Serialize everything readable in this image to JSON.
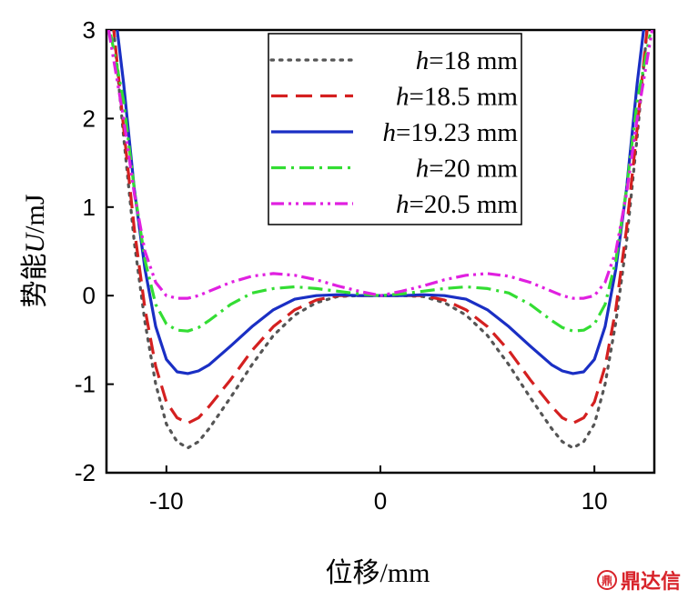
{
  "chart_data": {
    "type": "line",
    "title": "",
    "xlabel": "位移/mm",
    "ylabel_prefix": "势能",
    "ylabel_var": "U",
    "ylabel_unit": "/mJ",
    "xlim": [
      -12.8,
      12.8
    ],
    "ylim": [
      -2,
      3
    ],
    "xticks": [
      -10,
      0,
      10
    ],
    "yticks": [
      -2,
      -1,
      0,
      1,
      2,
      3
    ],
    "grid": false,
    "legend_position": "top-center",
    "series": [
      {
        "name_var": "h",
        "name_rest": "=18 mm",
        "color": "#555555",
        "dash": "dotted",
        "x": [
          -12.5,
          -12,
          -11.5,
          -11,
          -10.5,
          -10,
          -9.5,
          -9,
          -8.5,
          -8,
          -7,
          -6,
          -5,
          -4,
          -3,
          -2,
          -1,
          0,
          1,
          2,
          3,
          4,
          5,
          6,
          7,
          8,
          8.5,
          9,
          9.5,
          10,
          10.5,
          11,
          11.5,
          12,
          12.5
        ],
        "y": [
          3.1,
          1.8,
          0.6,
          -0.3,
          -1.0,
          -1.45,
          -1.65,
          -1.72,
          -1.65,
          -1.5,
          -1.15,
          -0.78,
          -0.45,
          -0.22,
          -0.08,
          -0.01,
          0,
          0,
          0,
          -0.01,
          -0.08,
          -0.22,
          -0.45,
          -0.78,
          -1.15,
          -1.5,
          -1.65,
          -1.72,
          -1.65,
          -1.45,
          -1.0,
          -0.3,
          0.6,
          1.8,
          3.1
        ]
      },
      {
        "name_var": "h",
        "name_rest": "=18.5 mm",
        "color": "#d42020",
        "dash": "dashed",
        "x": [
          -12.5,
          -12,
          -11.5,
          -11,
          -10.5,
          -10,
          -9.5,
          -9,
          -8.5,
          -8,
          -7,
          -6,
          -5,
          -4,
          -3,
          -2,
          -1,
          0,
          1,
          2,
          3,
          4,
          5,
          6,
          7,
          8,
          8.5,
          9,
          9.5,
          10,
          10.5,
          11,
          11.5,
          12,
          12.5
        ],
        "y": [
          3.1,
          1.9,
          0.75,
          -0.15,
          -0.8,
          -1.2,
          -1.38,
          -1.44,
          -1.38,
          -1.25,
          -0.95,
          -0.62,
          -0.35,
          -0.16,
          -0.05,
          0,
          0,
          0,
          0,
          0,
          -0.05,
          -0.16,
          -0.35,
          -0.62,
          -0.95,
          -1.25,
          -1.38,
          -1.44,
          -1.38,
          -1.2,
          -0.8,
          -0.15,
          0.75,
          1.9,
          3.1
        ]
      },
      {
        "name_var": "h",
        "name_rest": "=19.23 mm",
        "color": "#1a2fc4",
        "dash": "solid",
        "x": [
          -12.3,
          -12,
          -11.5,
          -11,
          -10.5,
          -10,
          -9.5,
          -9,
          -8.5,
          -8,
          -7,
          -6,
          -5,
          -4,
          -3,
          -2,
          -1,
          0,
          1,
          2,
          3,
          4,
          5,
          6,
          7,
          8,
          8.5,
          9,
          9.5,
          10,
          10.5,
          11,
          11.5,
          12,
          12.3
        ],
        "y": [
          3.0,
          2.4,
          1.2,
          0.3,
          -0.35,
          -0.72,
          -0.86,
          -0.88,
          -0.85,
          -0.78,
          -0.57,
          -0.35,
          -0.16,
          -0.04,
          0,
          0.01,
          0,
          0,
          0,
          0.01,
          0,
          -0.04,
          -0.16,
          -0.35,
          -0.57,
          -0.78,
          -0.85,
          -0.88,
          -0.86,
          -0.72,
          -0.35,
          0.3,
          1.2,
          2.4,
          3.0
        ]
      },
      {
        "name_var": "h",
        "name_rest": "=20 mm",
        "color": "#33dd33",
        "dash": "dashdot",
        "x": [
          -12.6,
          -12,
          -11.5,
          -11,
          -10.5,
          -10,
          -9.5,
          -9,
          -8.5,
          -8,
          -7,
          -6,
          -5,
          -4,
          -3,
          -2,
          -1,
          0,
          1,
          2,
          3,
          4,
          5,
          6,
          7,
          8,
          8.5,
          9,
          9.5,
          10,
          10.5,
          11,
          11.5,
          12,
          12.6
        ],
        "y": [
          2.95,
          2.2,
          1.2,
          0.4,
          -0.1,
          -0.32,
          -0.39,
          -0.4,
          -0.36,
          -0.28,
          -0.1,
          0.03,
          0.08,
          0.1,
          0.08,
          0.05,
          0.02,
          0,
          0.02,
          0.05,
          0.08,
          0.1,
          0.08,
          0.03,
          -0.1,
          -0.28,
          -0.36,
          -0.4,
          -0.39,
          -0.32,
          -0.1,
          0.4,
          1.2,
          2.2,
          2.95
        ]
      },
      {
        "name_var": "h",
        "name_rest": "=20.5 mm",
        "color": "#e020e0",
        "dash": "dashdotdot",
        "x": [
          -12.7,
          -12,
          -11.5,
          -11,
          -10.5,
          -10,
          -9.5,
          -9,
          -8.5,
          -8,
          -7,
          -6,
          -5,
          -4,
          -3,
          -2,
          -1,
          0,
          1,
          2,
          3,
          4,
          5,
          6,
          7,
          8,
          8.5,
          9,
          9.5,
          10,
          10.5,
          11,
          11.5,
          12,
          12.7
        ],
        "y": [
          3.0,
          2.0,
          1.15,
          0.5,
          0.15,
          0.0,
          -0.03,
          -0.03,
          0.0,
          0.05,
          0.15,
          0.22,
          0.25,
          0.23,
          0.18,
          0.11,
          0.05,
          0,
          0.05,
          0.11,
          0.18,
          0.23,
          0.25,
          0.22,
          0.15,
          0.05,
          0.0,
          -0.03,
          -0.03,
          0.0,
          0.15,
          0.5,
          1.15,
          2.0,
          3.0
        ]
      }
    ]
  },
  "watermark": {
    "logo": "鼎",
    "text": "鼎达信"
  }
}
